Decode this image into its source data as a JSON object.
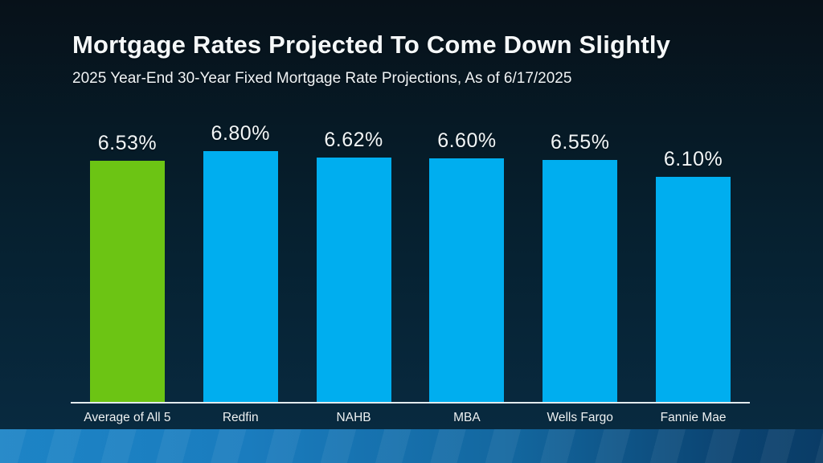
{
  "slide": {
    "title": "Mortgage Rates Projected To Come Down Slightly",
    "subtitle": "2025 Year-End 30-Year Fixed Mortgage Rate Projections, As of 6/17/2025"
  },
  "chart_data": {
    "type": "bar",
    "title": "Mortgage Rates Projected To Come Down Slightly",
    "subtitle": "2025 Year-End 30-Year Fixed Mortgage Rate Projections, As of 6/17/2025",
    "categories": [
      "Average of All 5",
      "Redfin",
      "NAHB",
      "MBA",
      "Wells Fargo",
      "Fannie Mae"
    ],
    "values": [
      6.53,
      6.8,
      6.62,
      6.6,
      6.55,
      6.1
    ],
    "value_labels": [
      "6.53%",
      "6.80%",
      "6.62%",
      "6.60%",
      "6.55%",
      "6.10%"
    ],
    "bar_colors": [
      "#6cc414",
      "#00aeef",
      "#00aeef",
      "#00aeef",
      "#00aeef",
      "#00aeef"
    ],
    "xlabel": "",
    "ylabel": "",
    "ylim": [
      0,
      6.8
    ],
    "gridlines": false,
    "legend": null,
    "value_label_position": "above-bar",
    "highlight_category": "Average of All 5"
  },
  "colors": {
    "background_top": "#071119",
    "background_bottom": "#082a40",
    "highlight_green": "#6cc414",
    "series_blue": "#00aeef",
    "axis_line": "#e2eaed",
    "text": "#f2f6f7",
    "footer_gradient_left": "#1d84c6",
    "footer_gradient_right": "#0a3c66"
  }
}
